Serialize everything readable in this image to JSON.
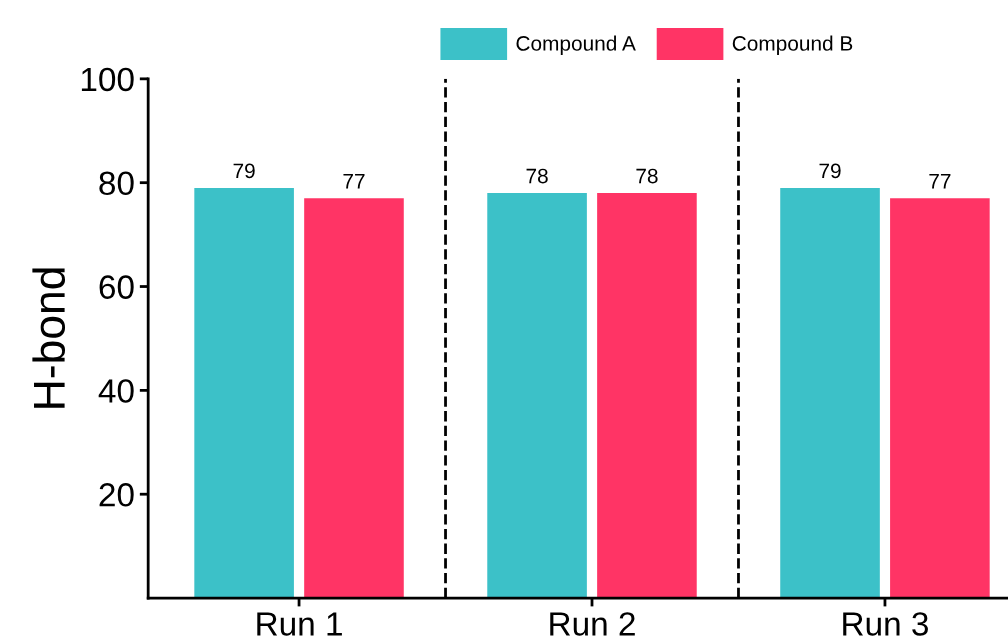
{
  "chart_data": {
    "type": "bar",
    "ylabel": "H-bond",
    "categories": [
      "Run 1",
      "Run 2",
      "Run 3"
    ],
    "series": [
      {
        "name": "Compound A",
        "color": "#3cc1c8",
        "values": [
          79,
          78,
          79
        ]
      },
      {
        "name": "Compound B",
        "color": "#ff3465",
        "values": [
          77,
          78,
          77
        ]
      }
    ],
    "ylim": [
      0,
      100
    ],
    "yticks": [
      20,
      40,
      60,
      80,
      100
    ],
    "data_labels": true,
    "legend": "top",
    "grid": false
  }
}
